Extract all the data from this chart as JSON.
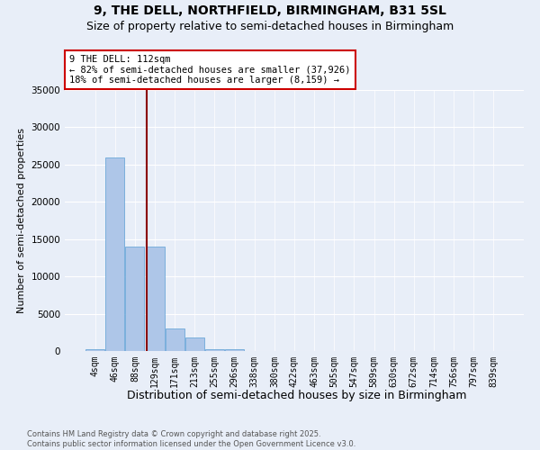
{
  "title": "9, THE DELL, NORTHFIELD, BIRMINGHAM, B31 5SL",
  "subtitle": "Size of property relative to semi-detached houses in Birmingham",
  "xlabel": "Distribution of semi-detached houses by size in Birmingham",
  "ylabel": "Number of semi-detached properties",
  "bins": [
    "4sqm",
    "46sqm",
    "88sqm",
    "129sqm",
    "171sqm",
    "213sqm",
    "255sqm",
    "296sqm",
    "338sqm",
    "380sqm",
    "422sqm",
    "463sqm",
    "505sqm",
    "547sqm",
    "589sqm",
    "630sqm",
    "672sqm",
    "714sqm",
    "756sqm",
    "797sqm",
    "839sqm"
  ],
  "values": [
    300,
    26000,
    14000,
    14000,
    3000,
    1800,
    200,
    200,
    0,
    0,
    0,
    0,
    0,
    0,
    0,
    0,
    0,
    0,
    0,
    50,
    0
  ],
  "bar_color": "#aec6e8",
  "bar_edge_color": "#5a9fd4",
  "vline_color": "#8b0000",
  "ylim": [
    0,
    35000
  ],
  "annotation_text": "9 THE DELL: 112sqm\n← 82% of semi-detached houses are smaller (37,926)\n18% of semi-detached houses are larger (8,159) →",
  "footnote": "Contains HM Land Registry data © Crown copyright and database right 2025.\nContains public sector information licensed under the Open Government Licence v3.0.",
  "bg_color": "#e8eef8",
  "title_fontsize": 10,
  "subtitle_fontsize": 9,
  "tick_fontsize": 7,
  "ylabel_fontsize": 8,
  "xlabel_fontsize": 9,
  "footnote_fontsize": 6
}
